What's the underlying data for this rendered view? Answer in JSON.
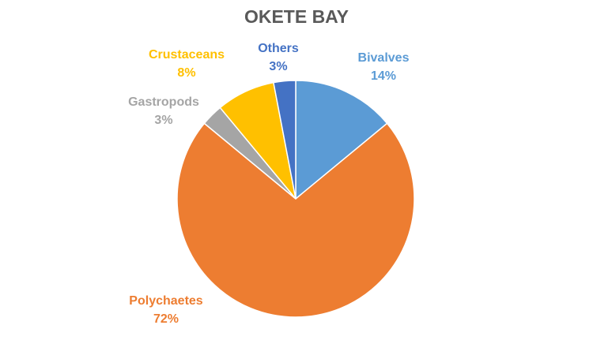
{
  "chart_data": {
    "type": "pie",
    "title": "OKETE BAY",
    "slices": [
      {
        "label": "Bivalves",
        "value": 14,
        "display": "14%",
        "color": "#5B9BD5"
      },
      {
        "label": "Polychaetes",
        "value": 72,
        "display": "72%",
        "color": "#ED7D31"
      },
      {
        "label": "Gastropods",
        "value": 3,
        "display": "3%",
        "color": "#A5A5A5"
      },
      {
        "label": "Crustaceans",
        "value": 8,
        "display": "8%",
        "color": "#FFC000"
      },
      {
        "label": "Others",
        "value": 3,
        "display": "3%",
        "color": "#4472C4"
      }
    ]
  }
}
